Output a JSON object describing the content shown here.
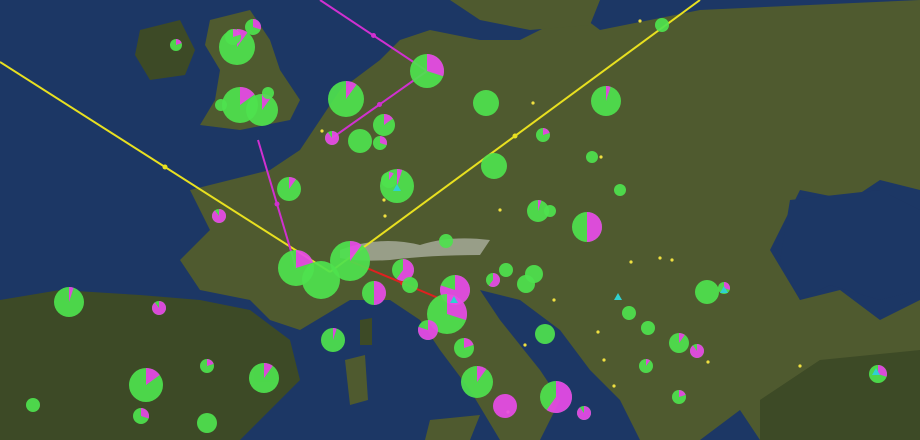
{
  "map": {
    "colors": {
      "sea": "#1c3765",
      "land": "#4f5a2f",
      "land_dark": "#3d4a26",
      "mountains": "#c9cbc4",
      "pie_primary": "#4ee24e",
      "pie_secondary": "#e84be8",
      "route_yellow": "#e8e020",
      "route_magenta": "#d030d0",
      "route_red": "#e02020",
      "dot": "#f0e040",
      "triangle": "#30d0d0"
    },
    "markers": [
      {
        "share_secondary": 0.1
      },
      {
        "share_secondary": 0.2
      },
      {
        "share_secondary": 0.3
      },
      {
        "share_secondary": 0.2
      },
      {
        "share_secondary": 0.15
      },
      {
        "share_secondary": 0.1
      },
      {
        "share_secondary": 0
      },
      {
        "share_secondary": 0
      },
      {
        "share_secondary": 0.3
      },
      {
        "share_secondary": 0.1
      },
      {
        "share_secondary": 0
      },
      {
        "share_secondary": 0.05
      },
      {
        "share_secondary": 0.9
      },
      {
        "share_secondary": 0
      },
      {
        "share_secondary": 0.15
      },
      {
        "share_secondary": 0.3
      },
      {
        "share_secondary": 0.2
      },
      {
        "share_secondary": 0
      },
      {
        "share_secondary": 0
      },
      {
        "share_secondary": 0.1
      },
      {
        "share_secondary": 0.05
      },
      {
        "share_secondary": 0.1
      },
      {
        "share_secondary": 0
      },
      {
        "share_secondary": 0.9
      },
      {
        "share_secondary": 0.05
      },
      {
        "share_secondary": 0
      },
      {
        "share_secondary": 0.5
      },
      {
        "share_secondary": 0
      },
      {
        "share_secondary": 0.2
      },
      {
        "share_secondary": 0
      },
      {
        "share_secondary": 0.1
      },
      {
        "share_secondary": 0.6
      },
      {
        "share_secondary": 0.5
      },
      {
        "share_secondary": 0
      },
      {
        "share_secondary": 0.6
      },
      {
        "share_secondary": 0
      },
      {
        "share_secondary": 0
      },
      {
        "share_secondary": 0
      },
      {
        "share_secondary": 0.8
      },
      {
        "share_secondary": 0.3
      },
      {
        "share_secondary": 0.8
      },
      {
        "share_secondary": 0
      },
      {
        "share_secondary": 0.3
      },
      {
        "share_secondary": 0
      },
      {
        "share_secondary": 0.05
      },
      {
        "share_secondary": 0.9
      },
      {
        "share_secondary": 0
      },
      {
        "share_secondary": 0
      },
      {
        "share_secondary": 0.05
      },
      {
        "share_secondary": 0.2
      },
      {
        "share_secondary": 0.1
      },
      {
        "share_secondary": 0.9
      },
      {
        "share_secondary": 0.1
      },
      {
        "share_secondary": 0.2
      },
      {
        "share_secondary": 0.1
      },
      {
        "share_secondary": 0.15
      },
      {
        "share_secondary": 0.1
      },
      {
        "share_secondary": 0.6
      },
      {
        "share_secondary": 1
      },
      {
        "share_secondary": 0.9
      },
      {
        "share_secondary": 0.2
      },
      {
        "share_secondary": 0.3
      },
      {
        "share_secondary": 0
      },
      {
        "share_secondary": 0.3
      },
      {
        "share_secondary": 0
      },
      {
        "share_secondary": 0
      }
    ]
  }
}
